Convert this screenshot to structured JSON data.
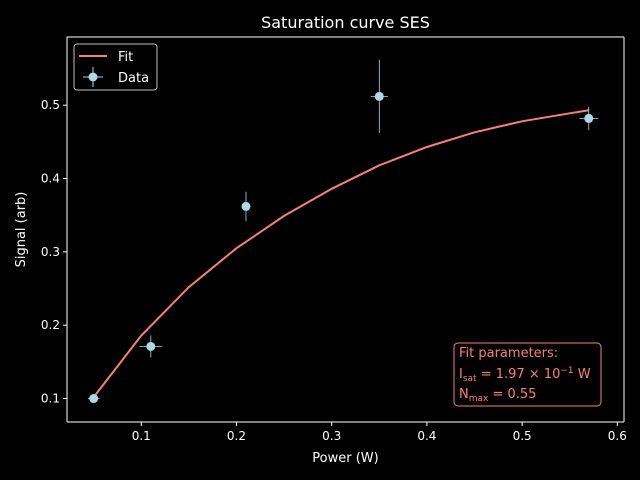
{
  "chart_data": {
    "type": "scatter",
    "title": "Saturation curve SES",
    "xlabel": "Power (W)",
    "ylabel": "Signal (arb)",
    "xlim": [
      0.022,
      0.607
    ],
    "ylim": [
      0.068,
      0.593
    ],
    "xticks": [
      0.1,
      0.2,
      0.3,
      0.4,
      0.5,
      0.6
    ],
    "yticks": [
      0.1,
      0.2,
      0.3,
      0.4,
      0.5
    ],
    "grid": false,
    "legend_position": "top-left",
    "series": [
      {
        "name": "Data",
        "kind": "errorbar",
        "color": "#add8e6",
        "points": [
          {
            "x": 0.05,
            "y": 0.1,
            "xerr": 0.006,
            "yerr": 0.002
          },
          {
            "x": 0.11,
            "y": 0.171,
            "xerr": 0.012,
            "yerr": 0.015
          },
          {
            "x": 0.21,
            "y": 0.362,
            "xerr": 0.003,
            "yerr": 0.02
          },
          {
            "x": 0.35,
            "y": 0.512,
            "xerr": 0.009,
            "yerr": 0.05
          },
          {
            "x": 0.57,
            "y": 0.482,
            "xerr": 0.01,
            "yerr": 0.016
          }
        ]
      },
      {
        "name": "Fit",
        "kind": "line",
        "color": "#fa8072",
        "x": [
          0.05,
          0.1,
          0.15,
          0.2,
          0.25,
          0.3,
          0.35,
          0.4,
          0.45,
          0.5,
          0.55,
          0.57
        ],
        "y": [
          0.102,
          0.186,
          0.252,
          0.305,
          0.349,
          0.386,
          0.418,
          0.443,
          0.463,
          0.478,
          0.489,
          0.493
        ]
      }
    ],
    "annotation": {
      "line1": "Fit parameters:",
      "isat_prefix": "I",
      "isat_sub": "sat",
      "isat_value": " = 1.97 × 10",
      "isat_exp": "−1",
      "isat_unit": " W",
      "nmax_prefix": "N",
      "nmax_sub": "max",
      "nmax_value": " = 0.55",
      "color": "#fa8072",
      "position": "bottom-right"
    }
  }
}
